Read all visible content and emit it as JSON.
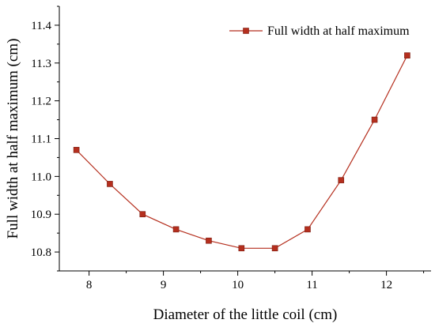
{
  "chart_data": {
    "type": "line",
    "xlabel": "Diameter of the little coil (cm)",
    "ylabel": "Full width at half maximum (cm)",
    "xlim": [
      7.6,
      12.6
    ],
    "ylim": [
      10.75,
      11.45
    ],
    "x_ticks": [
      8,
      9,
      10,
      11,
      12
    ],
    "x_tick_labels": [
      "8",
      "9",
      "10",
      "11",
      "12"
    ],
    "y_ticks": [
      10.8,
      10.9,
      11.0,
      11.1,
      11.2,
      11.3,
      11.4
    ],
    "y_tick_labels": [
      "10.8",
      "10.9",
      "11.0",
      "11.1",
      "11.2",
      "11.3",
      "11.4"
    ],
    "legend_position": "top-right",
    "grid": false,
    "series": [
      {
        "name": "Full width at half maximum",
        "color": "#b52f1e",
        "marker": "square",
        "x": [
          7.83,
          8.28,
          8.72,
          9.17,
          9.61,
          10.05,
          10.5,
          10.94,
          11.39,
          11.84,
          12.28
        ],
        "y": [
          11.07,
          10.98,
          10.9,
          10.86,
          10.83,
          10.81,
          10.81,
          10.86,
          10.99,
          11.15,
          11.32
        ]
      }
    ]
  }
}
